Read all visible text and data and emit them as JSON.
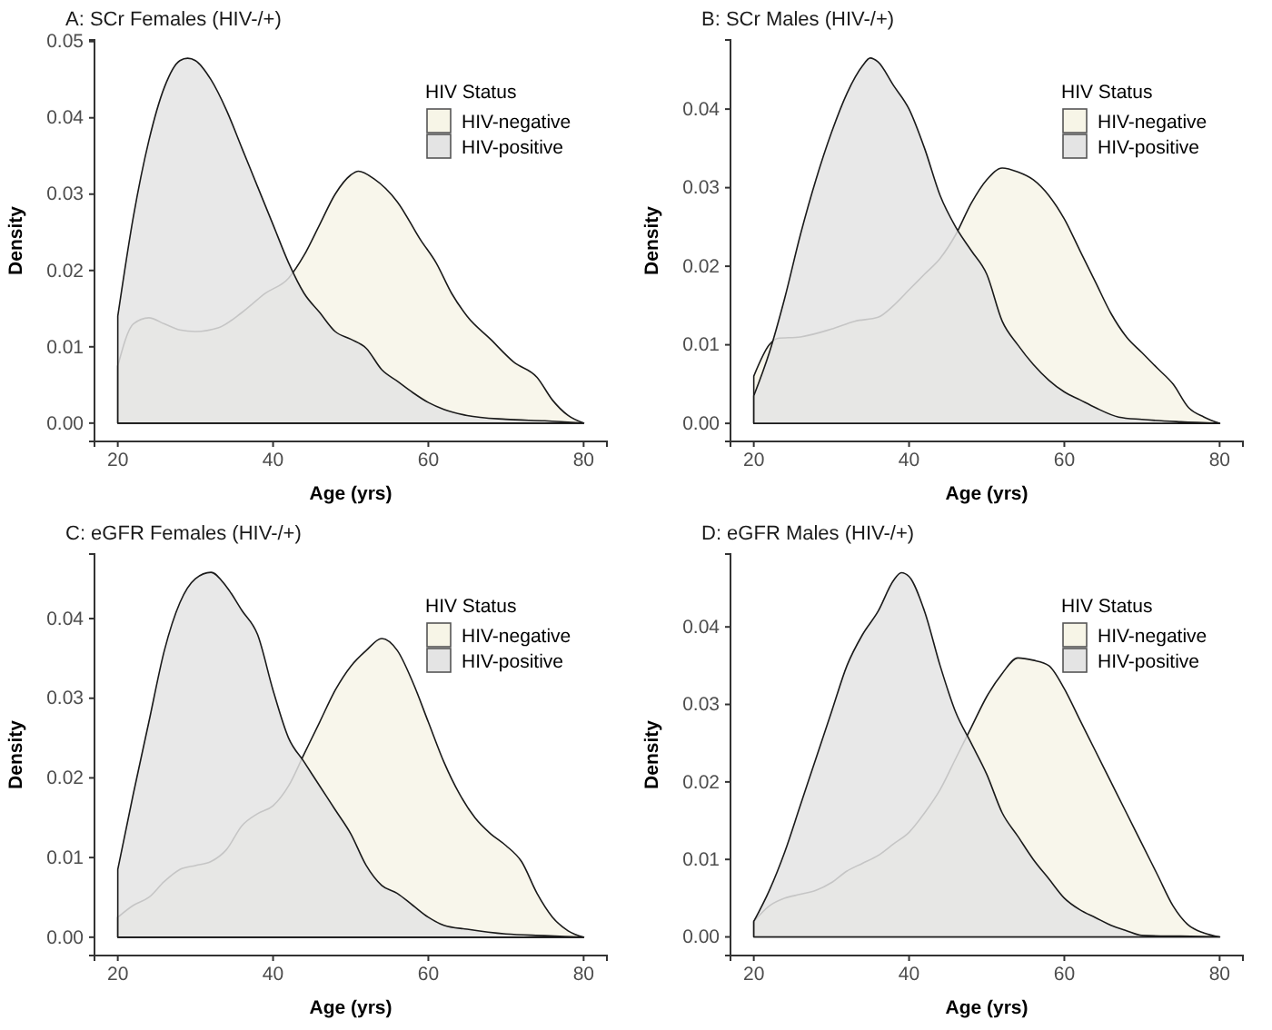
{
  "chart_data": [
    {
      "type": "area",
      "title": "A: SCr Females (HIV-/+)",
      "xlabel": "Age (yrs)",
      "ylabel": "Density",
      "legend_title": "HIV Status",
      "legend": "top right",
      "xlim": [
        17,
        83
      ],
      "xticks": [
        20,
        40,
        60,
        80
      ],
      "ylim": [
        -0.0024,
        0.0502
      ],
      "yticks": [
        {
          "value": 0,
          "label": "0.00"
        },
        {
          "value": 0.01,
          "label": "0.01"
        },
        {
          "value": 0.02,
          "label": "0.02"
        },
        {
          "value": 0.03,
          "label": "0.03"
        },
        {
          "value": 0.04,
          "label": "0.04"
        },
        {
          "value": 0.05,
          "label": "0.05"
        }
      ],
      "series": [
        {
          "name": "HIV-negative",
          "color": "#f7f5e7",
          "x": [
            20,
            22,
            24,
            26,
            28,
            30,
            33,
            36,
            39,
            42,
            44,
            46,
            48,
            50,
            51,
            53,
            56,
            59,
            61,
            63,
            65,
            68,
            71,
            74,
            76,
            78,
            80
          ],
          "values": [
            0.0075,
            0.013,
            0.0138,
            0.013,
            0.0122,
            0.012,
            0.0125,
            0.0145,
            0.017,
            0.019,
            0.022,
            0.026,
            0.03,
            0.0325,
            0.033,
            0.032,
            0.029,
            0.024,
            0.021,
            0.017,
            0.014,
            0.011,
            0.008,
            0.006,
            0.003,
            0.001,
            0
          ]
        },
        {
          "name": "HIV-positive",
          "color": "#e4e4e4",
          "x": [
            20,
            22,
            24,
            26,
            28,
            29,
            30,
            32,
            34,
            36,
            38,
            40,
            42,
            44,
            46,
            48,
            50,
            52,
            54,
            56,
            58,
            60,
            62,
            65,
            70,
            75,
            80
          ],
          "values": [
            0.014,
            0.027,
            0.037,
            0.044,
            0.0475,
            0.0478,
            0.0475,
            0.045,
            0.041,
            0.036,
            0.031,
            0.026,
            0.021,
            0.017,
            0.0145,
            0.012,
            0.011,
            0.0098,
            0.007,
            0.0055,
            0.004,
            0.0027,
            0.0018,
            0.001,
            0.0005,
            0.0003,
            0
          ]
        }
      ]
    },
    {
      "type": "area",
      "title": "B: SCr Males (HIV-/+)",
      "xlabel": "Age (yrs)",
      "ylabel": "Density",
      "legend_title": "HIV Status",
      "legend": "top right",
      "xlim": [
        17,
        83
      ],
      "xticks": [
        20,
        40,
        60,
        80
      ],
      "ylim": [
        -0.0023,
        0.0488
      ],
      "yticks": [
        {
          "value": 0,
          "label": "0.00"
        },
        {
          "value": 0.01,
          "label": "0.01"
        },
        {
          "value": 0.02,
          "label": "0.02"
        },
        {
          "value": 0.03,
          "label": "0.03"
        },
        {
          "value": 0.04,
          "label": "0.04"
        }
      ],
      "series": [
        {
          "name": "HIV-negative",
          "color": "#f7f5e7",
          "x": [
            20,
            22,
            23,
            26,
            30,
            33,
            36,
            38,
            40,
            42,
            44,
            46,
            48,
            50,
            52,
            54,
            56,
            58,
            60,
            62,
            64,
            66,
            68,
            70,
            72,
            74,
            76,
            78,
            80
          ],
          "values": [
            0.006,
            0.01,
            0.0108,
            0.011,
            0.012,
            0.013,
            0.0135,
            0.015,
            0.017,
            0.019,
            0.021,
            0.024,
            0.028,
            0.031,
            0.0325,
            0.032,
            0.031,
            0.029,
            0.026,
            0.022,
            0.018,
            0.014,
            0.011,
            0.009,
            0.007,
            0.005,
            0.002,
            0.0008,
            0
          ]
        },
        {
          "name": "HIV-positive",
          "color": "#e4e4e4",
          "x": [
            20,
            22,
            24,
            26,
            28,
            30,
            32,
            34,
            35,
            36,
            38,
            40,
            42,
            44,
            46,
            48,
            50,
            52,
            54,
            56,
            58,
            60,
            62,
            64,
            67,
            70,
            75,
            80
          ],
          "values": [
            0.0035,
            0.009,
            0.016,
            0.024,
            0.031,
            0.037,
            0.042,
            0.0455,
            0.0465,
            0.046,
            0.043,
            0.04,
            0.035,
            0.029,
            0.025,
            0.022,
            0.019,
            0.013,
            0.01,
            0.0075,
            0.0055,
            0.004,
            0.003,
            0.002,
            0.0008,
            0.0005,
            0.0002,
            0
          ]
        }
      ]
    },
    {
      "type": "area",
      "title": "C: eGFR Females (HIV-/+)",
      "xlabel": "Age (yrs)",
      "ylabel": "Density",
      "legend_title": "HIV Status",
      "legend": "top right",
      "xlim": [
        17,
        83
      ],
      "xticks": [
        20,
        40,
        60,
        80
      ],
      "ylim": [
        -0.0023,
        0.0481
      ],
      "yticks": [
        {
          "value": 0,
          "label": "0.00"
        },
        {
          "value": 0.01,
          "label": "0.01"
        },
        {
          "value": 0.02,
          "label": "0.02"
        },
        {
          "value": 0.03,
          "label": "0.03"
        },
        {
          "value": 0.04,
          "label": "0.04"
        }
      ],
      "series": [
        {
          "name": "HIV-negative",
          "color": "#f7f5e7",
          "x": [
            20,
            22,
            24,
            26,
            28,
            30,
            32,
            34,
            36,
            38,
            40,
            42,
            44,
            46,
            48,
            50,
            52,
            54,
            56,
            58,
            60,
            62,
            64,
            66,
            68,
            70,
            72,
            74,
            76,
            78,
            80
          ],
          "values": [
            0.0025,
            0.004,
            0.005,
            0.007,
            0.0085,
            0.009,
            0.0095,
            0.011,
            0.014,
            0.0155,
            0.0165,
            0.019,
            0.023,
            0.027,
            0.031,
            0.034,
            0.036,
            0.0375,
            0.036,
            0.032,
            0.027,
            0.022,
            0.018,
            0.015,
            0.013,
            0.0115,
            0.0095,
            0.0055,
            0.0025,
            0.0008,
            0
          ]
        },
        {
          "name": "HIV-positive",
          "color": "#e4e4e4",
          "x": [
            20,
            22,
            24,
            26,
            28,
            30,
            32,
            34,
            36,
            38,
            40,
            42,
            44,
            46,
            48,
            50,
            52,
            54,
            56,
            58,
            60,
            62,
            65,
            70,
            75,
            80
          ],
          "values": [
            0.0085,
            0.018,
            0.027,
            0.036,
            0.042,
            0.045,
            0.0458,
            0.044,
            0.041,
            0.038,
            0.031,
            0.025,
            0.022,
            0.019,
            0.016,
            0.013,
            0.009,
            0.0065,
            0.0055,
            0.004,
            0.0025,
            0.0015,
            0.001,
            0.0004,
            0.0002,
            0
          ]
        }
      ]
    },
    {
      "type": "area",
      "title": "D: eGFR Males (HIV-/+)",
      "xlabel": "Age (yrs)",
      "ylabel": "Density",
      "legend_title": "HIV Status",
      "legend": "top right",
      "xlim": [
        17,
        83
      ],
      "xticks": [
        20,
        40,
        60,
        80
      ],
      "ylim": [
        -0.0024,
        0.0494
      ],
      "yticks": [
        {
          "value": 0,
          "label": "0.00"
        },
        {
          "value": 0.01,
          "label": "0.01"
        },
        {
          "value": 0.02,
          "label": "0.02"
        },
        {
          "value": 0.03,
          "label": "0.03"
        },
        {
          "value": 0.04,
          "label": "0.04"
        }
      ],
      "series": [
        {
          "name": "HIV-negative",
          "color": "#f7f5e7",
          "x": [
            20,
            22,
            24,
            26,
            28,
            30,
            32,
            34,
            36,
            38,
            40,
            42,
            44,
            46,
            48,
            50,
            52,
            54,
            56,
            58,
            60,
            62,
            64,
            66,
            68,
            70,
            72,
            74,
            76,
            78,
            80
          ],
          "values": [
            0.002,
            0.004,
            0.005,
            0.0055,
            0.006,
            0.007,
            0.0085,
            0.0095,
            0.0105,
            0.012,
            0.0135,
            0.016,
            0.019,
            0.023,
            0.027,
            0.031,
            0.034,
            0.036,
            0.0357,
            0.035,
            0.032,
            0.028,
            0.024,
            0.02,
            0.016,
            0.012,
            0.008,
            0.004,
            0.0015,
            0.0005,
            0
          ]
        },
        {
          "name": "HIV-positive",
          "color": "#e4e4e4",
          "x": [
            20,
            22,
            24,
            26,
            28,
            30,
            32,
            34,
            36,
            38,
            39,
            40,
            42,
            44,
            46,
            48,
            50,
            52,
            54,
            56,
            58,
            60,
            62,
            64,
            66,
            68,
            70,
            75,
            80
          ],
          "values": [
            0.002,
            0.006,
            0.011,
            0.017,
            0.023,
            0.029,
            0.035,
            0.039,
            0.042,
            0.046,
            0.047,
            0.0465,
            0.042,
            0.035,
            0.029,
            0.025,
            0.021,
            0.016,
            0.013,
            0.01,
            0.0075,
            0.005,
            0.0035,
            0.0025,
            0.0015,
            0.0008,
            0.0002,
            0.0001,
            0
          ]
        }
      ]
    }
  ]
}
